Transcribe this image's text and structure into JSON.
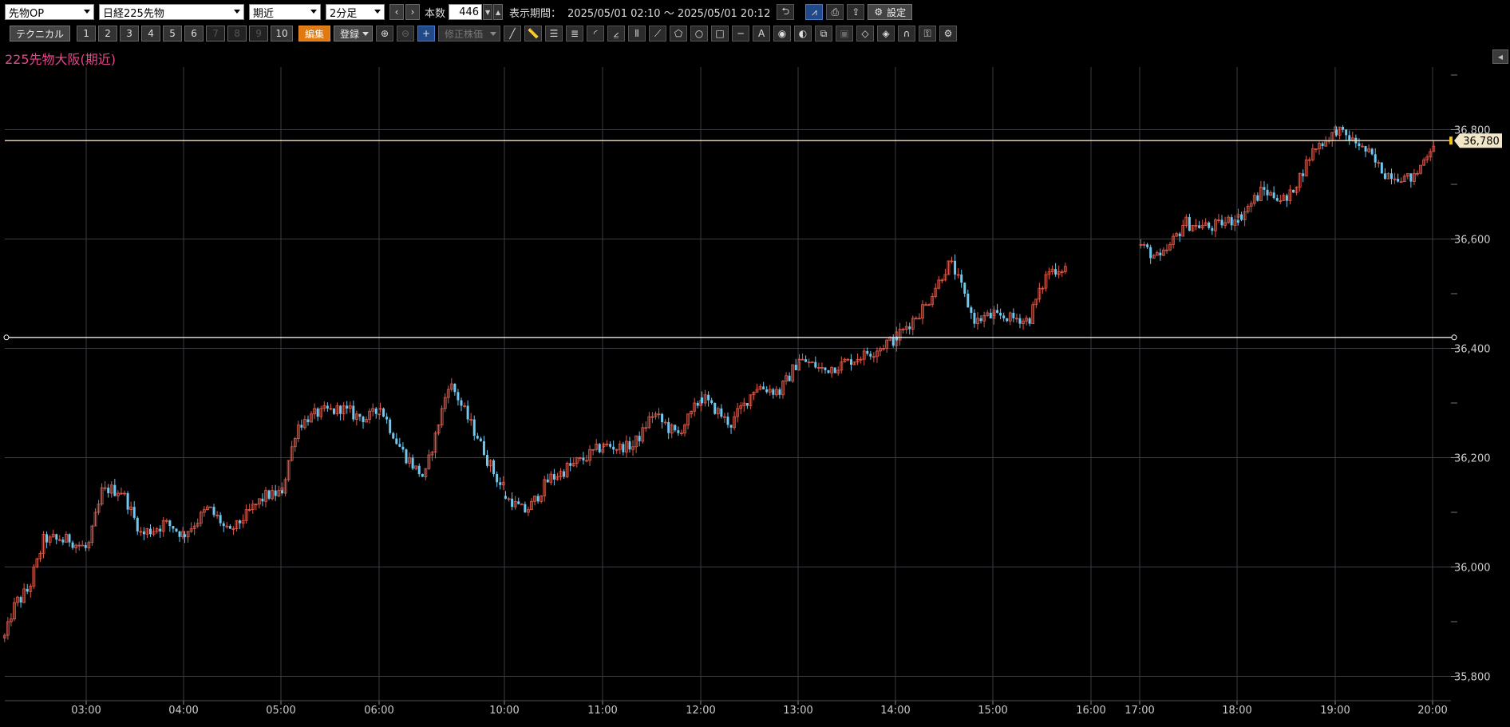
{
  "toolbar1": {
    "category": "先物OP",
    "instrument": "日経225先物",
    "contract": "期近",
    "interval": "2分足",
    "bars_label": "本数",
    "bars_value": "446",
    "period_label": "表示期間：",
    "period_value": "2025/05/01 02:10 ～ 2025/05/01 20:12",
    "settings_label": "設定"
  },
  "toolbar2": {
    "technical_label": "テクニカル",
    "slots": [
      "1",
      "2",
      "3",
      "4",
      "5",
      "6",
      "7",
      "8",
      "9",
      "10"
    ],
    "edit_label": "編集",
    "register_label": "登録",
    "adjust_label": "修正株価"
  },
  "chart_title": "225先物大阪(期近)",
  "colors": {
    "up": "#e05a4a",
    "down": "#6ec8f0",
    "grid": "#3c3c44",
    "price_tag_bg": "#f2e6c8",
    "title": "#e04a8a"
  },
  "chart_data": {
    "type": "candlestick",
    "ylim": [
      35800,
      36900
    ],
    "y_ticks": [
      "35,800",
      "36,000",
      "36,200",
      "36,400",
      "36,600",
      "36,800"
    ],
    "y_tick_values": [
      35800,
      36000,
      36200,
      36400,
      36600,
      36800
    ],
    "x_ticks": [
      "03:00",
      "04:00",
      "05:00",
      "06:00",
      "10:00",
      "11:00",
      "12:00",
      "13:00",
      "14:00",
      "15:00",
      "16:00",
      "17:00",
      "18:00",
      "19:00",
      "20:00"
    ],
    "current_price": "36,780",
    "current_price_value": 36780,
    "hlines": [
      36780,
      36420
    ],
    "segments": [
      {
        "from": "03:00",
        "knots": [
          [
            -0.85,
            35870
          ],
          [
            -0.75,
            35930
          ],
          [
            -0.6,
            35960
          ],
          [
            -0.45,
            36050
          ],
          [
            -0.2,
            36050
          ],
          [
            0,
            36030
          ],
          [
            0.15,
            36140
          ],
          [
            0.35,
            36140
          ],
          [
            0.55,
            36060
          ],
          [
            0.8,
            36080
          ],
          [
            1,
            36060
          ]
        ]
      },
      {
        "from": "04:00",
        "knots": [
          [
            0,
            36060
          ],
          [
            0.25,
            36110
          ],
          [
            0.45,
            36060
          ],
          [
            0.7,
            36110
          ],
          [
            0.85,
            36130
          ],
          [
            1,
            36140
          ]
        ]
      },
      {
        "from": "05:00",
        "knots": [
          [
            0,
            36140
          ],
          [
            0.15,
            36260
          ],
          [
            0.35,
            36280
          ],
          [
            0.6,
            36290
          ],
          [
            0.85,
            36270
          ],
          [
            1,
            36290
          ]
        ]
      },
      {
        "from": "06:00",
        "knots": [
          [
            0,
            36290
          ],
          [
            0.15,
            36220
          ],
          [
            0.35,
            36160
          ],
          [
            0.55,
            36340
          ],
          [
            0.75,
            36250
          ],
          [
            0.95,
            36150
          ],
          [
            1,
            36150
          ]
        ]
      },
      {
        "from": "10:00",
        "knots": [
          [
            0,
            36130
          ],
          [
            0.2,
            36100
          ],
          [
            0.45,
            36160
          ],
          [
            0.7,
            36190
          ],
          [
            0.9,
            36210
          ],
          [
            1,
            36220
          ]
        ]
      },
      {
        "from": "11:00",
        "knots": [
          [
            0,
            36220
          ],
          [
            0.3,
            36220
          ],
          [
            0.5,
            36280
          ],
          [
            0.75,
            36240
          ],
          [
            1,
            36310
          ]
        ]
      },
      {
        "from": "12:00",
        "knots": [
          [
            0,
            36310
          ],
          [
            0.3,
            36260
          ],
          [
            0.55,
            36330
          ],
          [
            0.8,
            36320
          ],
          [
            1,
            36380
          ]
        ]
      },
      {
        "from": "13:00",
        "knots": [
          [
            0,
            36380
          ],
          [
            0.25,
            36360
          ],
          [
            0.55,
            36380
          ],
          [
            0.8,
            36400
          ],
          [
            1,
            36420
          ]
        ]
      },
      {
        "from": "14:00",
        "knots": [
          [
            0,
            36420
          ],
          [
            0.3,
            36480
          ],
          [
            0.55,
            36560
          ],
          [
            0.8,
            36450
          ],
          [
            1,
            36460
          ]
        ]
      },
      {
        "from": "15:00",
        "knots": [
          [
            0,
            36460
          ],
          [
            0.35,
            36450
          ],
          [
            0.55,
            36540
          ],
          [
            0.75,
            36550
          ]
        ]
      },
      {
        "from": "17:00",
        "knots": [
          [
            0,
            36590
          ],
          [
            0.2,
            36560
          ],
          [
            0.45,
            36630
          ],
          [
            0.7,
            36620
          ],
          [
            1,
            36640
          ]
        ]
      },
      {
        "from": "18:00",
        "knots": [
          [
            0,
            36640
          ],
          [
            0.25,
            36690
          ],
          [
            0.5,
            36670
          ],
          [
            0.75,
            36760
          ],
          [
            1,
            36800
          ]
        ]
      },
      {
        "from": "19:00",
        "knots": [
          [
            0,
            36800
          ],
          [
            0.25,
            36770
          ],
          [
            0.5,
            36720
          ],
          [
            0.8,
            36710
          ],
          [
            1,
            36780
          ]
        ]
      }
    ]
  }
}
